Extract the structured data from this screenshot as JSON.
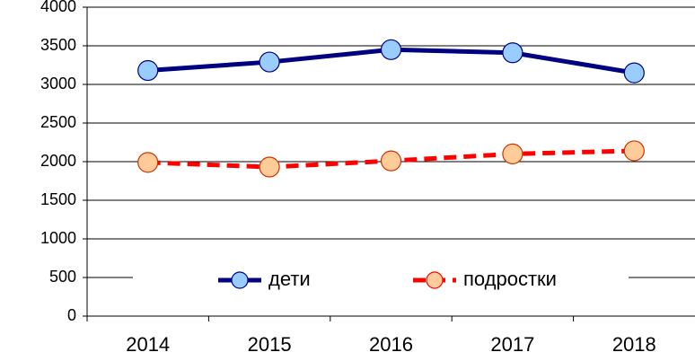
{
  "chart_data": {
    "type": "line",
    "categories": [
      "2014",
      "2015",
      "2016",
      "2017",
      "2018"
    ],
    "series": [
      {
        "name": "дети",
        "color": "#000080",
        "marker_color": "#99ccff",
        "line_style": "solid",
        "values": [
          3180,
          3290,
          3450,
          3410,
          3150
        ]
      },
      {
        "name": "подростки",
        "color": "#ff0000",
        "marker_color": "#ffcc99",
        "line_style": "dashed",
        "values": [
          1990,
          1930,
          2010,
          2100,
          2140
        ]
      }
    ],
    "ylim": [
      0,
      4000
    ],
    "yticks": [
      0,
      500,
      1000,
      1500,
      2000,
      2500,
      3000,
      3500,
      4000
    ],
    "grid": true,
    "legend": "bottom"
  }
}
